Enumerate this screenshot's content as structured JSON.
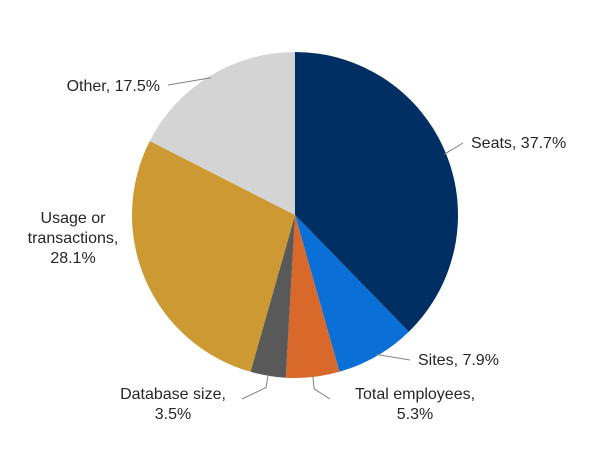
{
  "chart_data": {
    "type": "pie",
    "title": "",
    "slices": [
      {
        "label_lines": [
          "Seats, 37.7%"
        ],
        "value": 37.7,
        "color": "#002f63"
      },
      {
        "label_lines": [
          "Sites, 7.9%"
        ],
        "value": 7.9,
        "color": "#0a6fd6"
      },
      {
        "label_lines": [
          "Total employees,",
          "5.3%"
        ],
        "value": 5.3,
        "color": "#d9692b"
      },
      {
        "label_lines": [
          "Database size,",
          "3.5%"
        ],
        "value": 3.5,
        "color": "#595959"
      },
      {
        "label_lines": [
          "Usage or",
          "transactions,",
          "28.1%"
        ],
        "value": 28.1,
        "color": "#cc9933"
      },
      {
        "label_lines": [
          "Other, 17.5%"
        ],
        "value": 17.5,
        "color": "#d4d4d4"
      }
    ],
    "start_angle_deg": 0,
    "direction": "clockwise",
    "legend": "none"
  }
}
